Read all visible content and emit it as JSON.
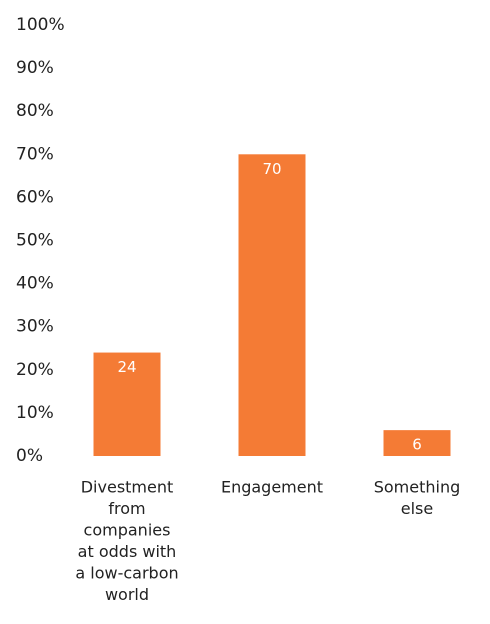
{
  "chart_data": {
    "type": "bar",
    "categories": [
      [
        "Divestment",
        "from",
        "companies",
        "at odds with",
        "a low-carbon",
        "world"
      ],
      [
        "Engagement"
      ],
      [
        "Something",
        "else"
      ]
    ],
    "values": [
      24,
      70,
      6
    ],
    "value_labels": [
      "24",
      "70",
      "6"
    ],
    "y_ticks": [
      "0%",
      "10%",
      "20%",
      "30%",
      "40%",
      "50%",
      "60%",
      "70%",
      "80%",
      "90%",
      "100%"
    ],
    "ylim": [
      0,
      100
    ],
    "grid": false,
    "bar_color": "#f47b35",
    "title": "",
    "xlabel": "",
    "ylabel": ""
  }
}
